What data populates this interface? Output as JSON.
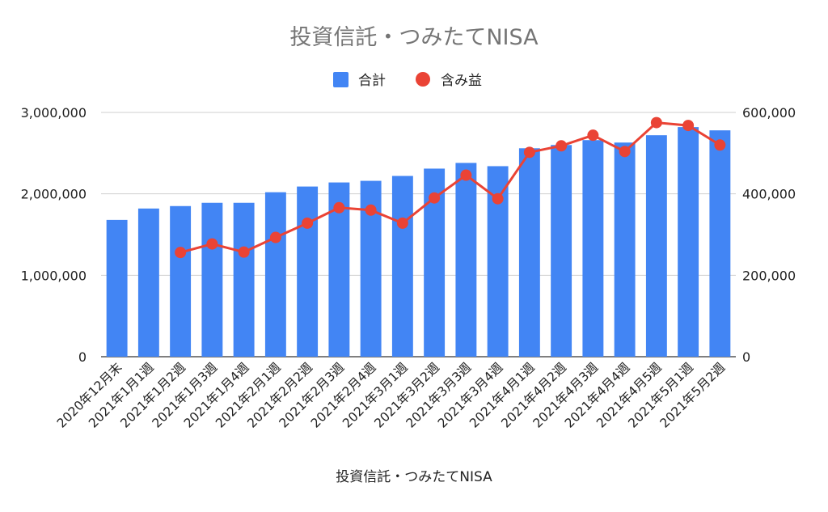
{
  "chart_data": {
    "type": "bar+line",
    "title": "投資信託・つみたてNISA",
    "xlabel": "投資信託・つみたてNISA",
    "categories": [
      "2020年12月末",
      "2021年1月1週",
      "2021年1月2週",
      "2021年1月3週",
      "2021年1月4週",
      "2021年2月1週",
      "2021年2月2週",
      "2021年2月3週",
      "2021年2月4週",
      "2021年3月1週",
      "2021年3月2週",
      "2021年3月3週",
      "2021年3月4週",
      "2021年4月1週",
      "2021年4月2週",
      "2021年4月3週",
      "2021年4月4週",
      "2021年4月5週",
      "2021年5月1週",
      "2021年5月2週"
    ],
    "series": [
      {
        "name": "合計",
        "type": "bar",
        "axis": "left",
        "color": "#4285f4",
        "values": [
          1680000,
          1820000,
          1850000,
          1890000,
          1890000,
          2020000,
          2090000,
          2140000,
          2160000,
          2220000,
          2310000,
          2380000,
          2340000,
          2560000,
          2600000,
          2660000,
          2630000,
          2720000,
          2820000,
          2780000
        ]
      },
      {
        "name": "含み益",
        "type": "line",
        "axis": "right",
        "color": "#ea4335",
        "values": [
          null,
          null,
          256000,
          277000,
          257000,
          293000,
          328000,
          366000,
          360000,
          328000,
          390000,
          446000,
          388000,
          502000,
          518000,
          544000,
          504000,
          575000,
          568000,
          520000
        ]
      }
    ],
    "y_left": {
      "ylim": [
        0,
        3000000
      ],
      "ticks": [
        "0",
        "1,000,000",
        "2,000,000",
        "3,000,000"
      ]
    },
    "y_right": {
      "ylim": [
        0,
        600000
      ],
      "ticks": [
        "0",
        "200,000",
        "400,000",
        "600,000"
      ]
    },
    "grid": true,
    "legend": "top-center"
  }
}
